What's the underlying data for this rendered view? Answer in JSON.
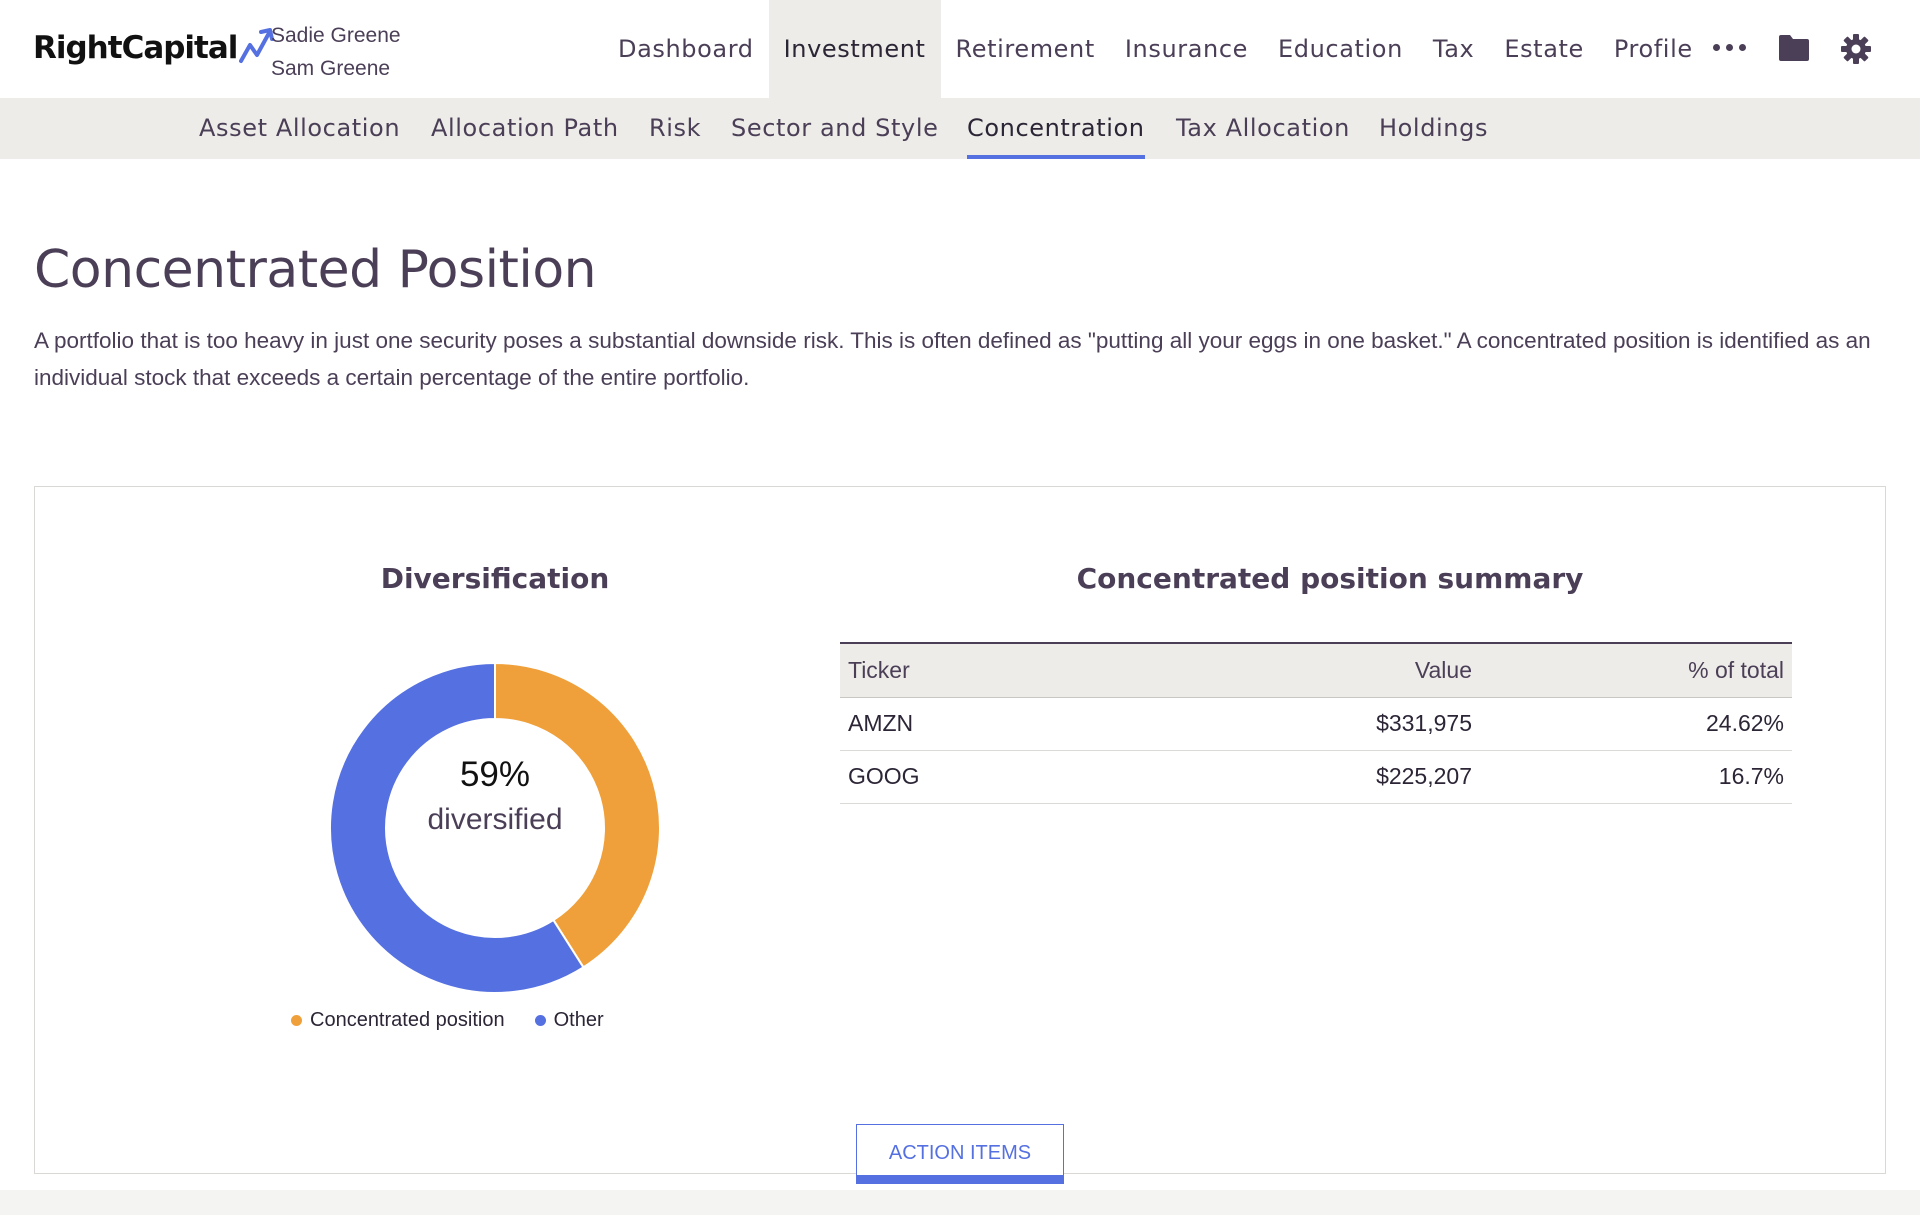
{
  "brand": {
    "name": "RightCapital"
  },
  "clients": [
    "Sadie Greene",
    "Sam Greene"
  ],
  "main_nav": {
    "items": [
      {
        "label": "Dashboard",
        "active": false
      },
      {
        "label": "Investment",
        "active": true
      },
      {
        "label": "Retirement",
        "active": false
      },
      {
        "label": "Insurance",
        "active": false
      },
      {
        "label": "Education",
        "active": false
      },
      {
        "label": "Tax",
        "active": false
      },
      {
        "label": "Estate",
        "active": false
      },
      {
        "label": "Profile",
        "active": false
      }
    ],
    "icons": [
      "more-icon",
      "folder-icon",
      "gear-icon"
    ]
  },
  "sub_nav": {
    "items": [
      {
        "label": "Asset Allocation",
        "active": false
      },
      {
        "label": "Allocation Path",
        "active": false
      },
      {
        "label": "Risk",
        "active": false
      },
      {
        "label": "Sector and Style",
        "active": false
      },
      {
        "label": "Concentration",
        "active": true
      },
      {
        "label": "Tax Allocation",
        "active": false
      },
      {
        "label": "Holdings",
        "active": false
      }
    ]
  },
  "page": {
    "title": "Concentrated Position",
    "description": "A portfolio that is too heavy in just one security poses a substantial downside risk. This is often defined as \"putting all your eggs in one basket.\" A concentrated position is identified as an individual stock that exceeds a certain percentage of the entire portfolio."
  },
  "diversification": {
    "title": "Diversification",
    "center_value": "59%",
    "center_label": "diversified",
    "legend": [
      {
        "label": "Concentrated position",
        "color": "#f0a03a"
      },
      {
        "label": "Other",
        "color": "#5570e0"
      }
    ]
  },
  "chart_data": {
    "type": "pie",
    "title": "Diversification",
    "categories": [
      "Concentrated position",
      "Other"
    ],
    "values": [
      41,
      59
    ],
    "colors": [
      "#f0a03a",
      "#5570e0"
    ],
    "donut": true,
    "legend": "bottom"
  },
  "summary": {
    "title": "Concentrated position summary",
    "columns": [
      "Ticker",
      "Value",
      "% of total"
    ],
    "rows": [
      [
        "AMZN",
        "$331,975",
        "24.62%"
      ],
      [
        "GOOG",
        "$225,207",
        "16.7%"
      ]
    ]
  },
  "action_button": {
    "label": "ACTION ITEMS"
  },
  "colors": {
    "accent": "#5570e0",
    "concentrated": "#f0a03a",
    "text": "#4b3f57",
    "nav_bg": "#edece8"
  }
}
